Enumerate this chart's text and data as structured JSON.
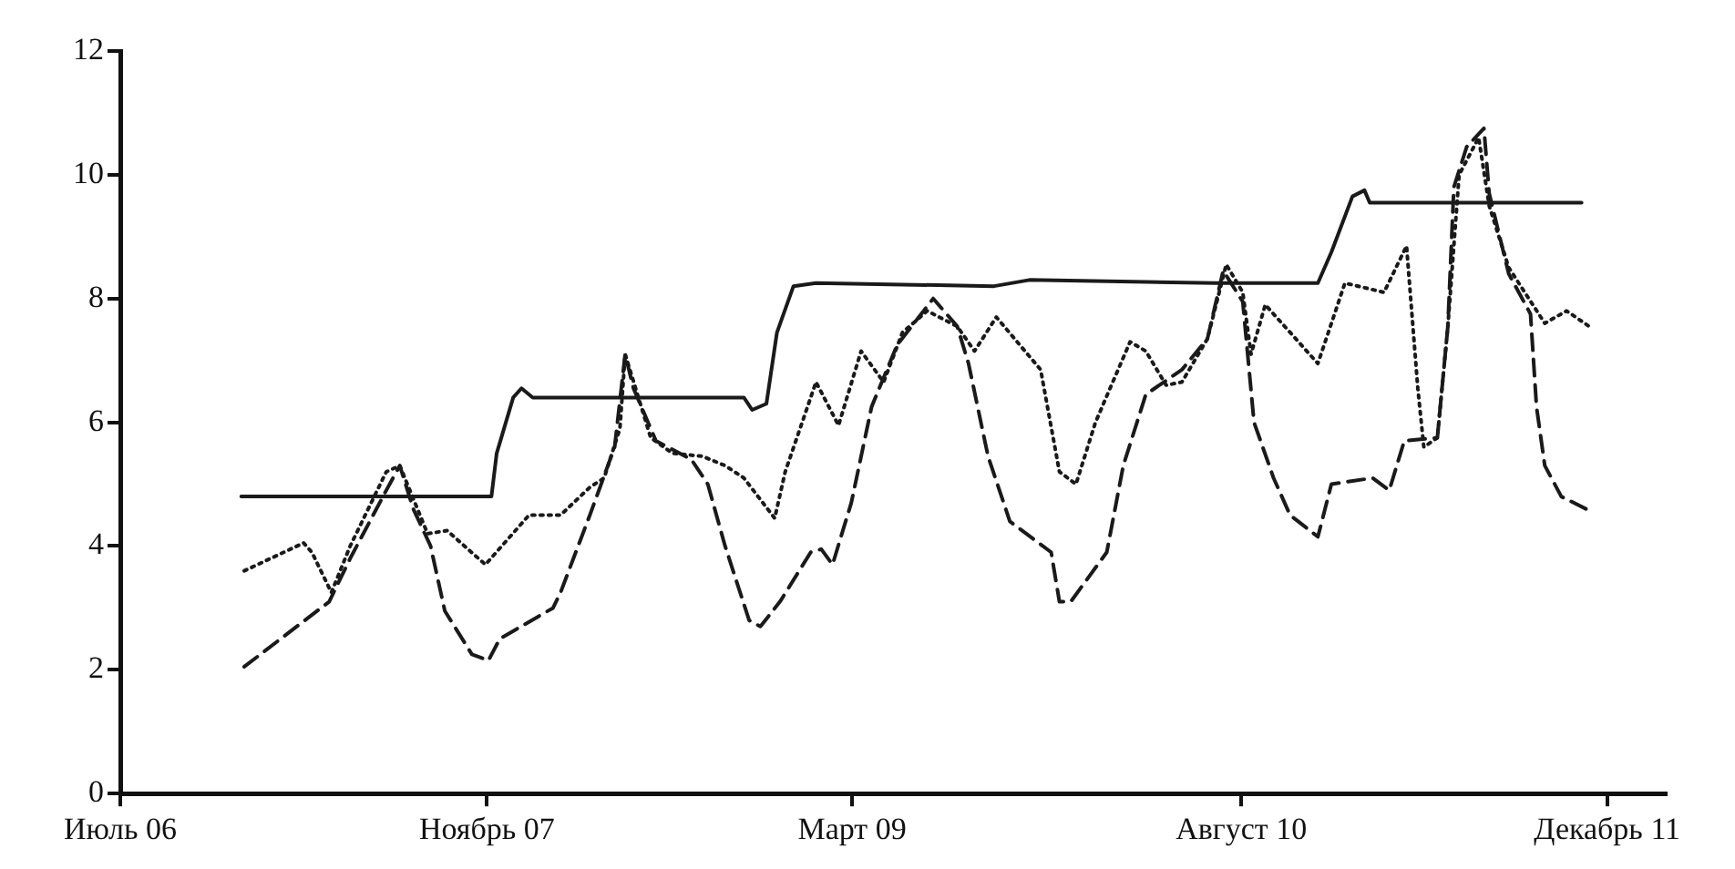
{
  "chart_data": {
    "type": "line",
    "xlim": [
      "2006-07",
      "2012-02-17"
    ],
    "ylim": [
      0,
      12
    ],
    "xticks": [
      {
        "value": "2006-07",
        "label": "Июль 06"
      },
      {
        "value": "2007-11",
        "label": "Ноябрь 07"
      },
      {
        "value": "2009-03",
        "label": "Март 09"
      },
      {
        "value": "2010-08",
        "label": "Август 10"
      },
      {
        "value": "2011-12",
        "label": "Декабрь 11"
      }
    ],
    "yticks": [
      0,
      2,
      4,
      6,
      8,
      10,
      12
    ],
    "grid": false,
    "legend": false,
    "marker": "none",
    "series": [
      {
        "color": "#1a1a1a",
        "line_style": "solid",
        "x": [
          "2006-12-09",
          "2007-11-07",
          "2007-11-14",
          "2007-12-06",
          "2007-12-17",
          "2008-01-01",
          "2008-10-08",
          "2008-10-19",
          "2008-11-07",
          "2008-11-21",
          "2008-12-13",
          "2009-01-12",
          "2009-09-06",
          "2009-10-23",
          "2010-06-27",
          "2010-11-11",
          "2010-11-29",
          "2010-12-27",
          "2011-01-12",
          "2011-01-19",
          "2011-03-24",
          "2011-10-28"
        ],
        "values": [
          4.8,
          4.8,
          5.5,
          6.4,
          6.55,
          6.4,
          6.4,
          6.2,
          6.3,
          7.45,
          8.2,
          8.25,
          8.2,
          8.3,
          8.25,
          8.25,
          8.75,
          9.65,
          9.75,
          9.55,
          9.55,
          9.55
        ]
      },
      {
        "color": "#1a1a1a",
        "line_style": "dashed",
        "x": [
          "2006-12-13",
          "2007-04-05",
          "2007-05-03",
          "2007-06-20",
          "2007-07-08",
          "2007-07-26",
          "2007-08-18",
          "2007-09-06",
          "2007-10-12",
          "2007-11-03",
          "2007-11-18",
          "2008-01-28",
          "2008-02-07",
          "2008-03-17",
          "2008-04-19",
          "2008-05-03",
          "2008-05-14",
          "2008-06-13",
          "2008-07-30",
          "2008-08-21",
          "2008-09-13",
          "2008-10-15",
          "2008-10-30",
          "2008-11-25",
          "2009-01-05",
          "2009-01-19",
          "2009-02-03",
          "2009-02-28",
          "2009-03-27",
          "2009-04-30",
          "2009-06-17",
          "2009-07-19",
          "2009-08-03",
          "2009-08-29",
          "2009-09-27",
          "2009-10-30",
          "2009-11-21",
          "2009-12-02",
          "2009-12-17",
          "2010-02-03",
          "2010-02-25",
          "2010-03-27",
          "2010-05-14",
          "2010-06-17",
          "2010-07-08",
          "2010-08-03",
          "2010-08-18",
          "2010-09-13",
          "2010-10-05",
          "2010-11-11",
          "2010-11-29",
          "2011-01-23",
          "2011-02-14",
          "2011-03-06",
          "2011-04-19",
          "2011-05-03",
          "2011-05-11",
          "2011-05-28",
          "2011-06-20",
          "2011-06-27",
          "2011-07-23",
          "2011-08-21",
          "2011-08-29",
          "2011-09-09",
          "2011-10-01",
          "2011-11-03"
        ],
        "values": [
          2.05,
          3.1,
          3.8,
          4.9,
          5.3,
          4.6,
          4.0,
          2.95,
          2.25,
          2.15,
          2.5,
          3.0,
          3.25,
          4.5,
          5.6,
          7.1,
          6.55,
          5.7,
          5.4,
          5.0,
          4.0,
          2.8,
          2.7,
          3.1,
          3.9,
          3.95,
          3.7,
          4.7,
          6.25,
          7.25,
          8.0,
          7.55,
          6.95,
          5.45,
          4.4,
          4.1,
          3.9,
          3.1,
          3.1,
          3.9,
          5.3,
          6.45,
          6.85,
          7.35,
          8.45,
          7.95,
          6.0,
          5.1,
          4.5,
          4.15,
          5.0,
          5.1,
          4.9,
          5.7,
          5.75,
          7.55,
          9.8,
          10.45,
          10.75,
          9.7,
          8.4,
          7.75,
          6.25,
          5.3,
          4.8,
          4.6
        ]
      },
      {
        "color": "#1a1a1a",
        "line_style": "dotted",
        "x": [
          "2006-12-13",
          "2007-03-02",
          "2007-03-13",
          "2007-04-08",
          "2007-05-03",
          "2007-06-20",
          "2007-07-08",
          "2007-08-14",
          "2007-09-09",
          "2007-10-30",
          "2007-12-27",
          "2008-02-07",
          "2008-03-17",
          "2008-04-05",
          "2008-04-26",
          "2008-05-03",
          "2008-06-06",
          "2008-07-05",
          "2008-08-14",
          "2008-09-13",
          "2008-10-08",
          "2008-11-18",
          "2008-12-02",
          "2009-01-12",
          "2009-02-11",
          "2009-03-13",
          "2009-04-12",
          "2009-05-07",
          "2009-06-09",
          "2009-07-19",
          "2009-08-11",
          "2009-09-09",
          "2009-11-07",
          "2009-12-02",
          "2009-12-24",
          "2010-01-19",
          "2010-03-06",
          "2010-03-27",
          "2010-04-23",
          "2010-05-14",
          "2010-06-17",
          "2010-07-12",
          "2010-08-03",
          "2010-08-14",
          "2010-09-02",
          "2010-11-11",
          "2010-12-17",
          "2011-02-07",
          "2011-03-09",
          "2011-03-24",
          "2011-04-01",
          "2011-04-19",
          "2011-05-03",
          "2011-05-18",
          "2011-06-13",
          "2011-06-27",
          "2011-07-23",
          "2011-09-09",
          "2011-10-08",
          "2011-11-07"
        ],
        "values": [
          3.6,
          4.05,
          3.9,
          3.25,
          4.0,
          5.2,
          5.3,
          4.2,
          4.25,
          3.7,
          4.5,
          4.5,
          4.95,
          5.1,
          5.9,
          7.1,
          5.75,
          5.5,
          5.45,
          5.3,
          5.1,
          4.45,
          5.2,
          6.65,
          5.95,
          7.15,
          6.65,
          7.45,
          7.8,
          7.55,
          7.15,
          7.7,
          6.85,
          5.2,
          5.0,
          6.0,
          7.3,
          7.15,
          6.6,
          6.65,
          7.35,
          8.55,
          8.1,
          7.1,
          7.9,
          6.95,
          8.25,
          8.1,
          8.85,
          6.55,
          5.6,
          5.75,
          7.55,
          10.0,
          10.6,
          9.5,
          8.5,
          7.6,
          7.8,
          7.55
        ]
      }
    ]
  }
}
